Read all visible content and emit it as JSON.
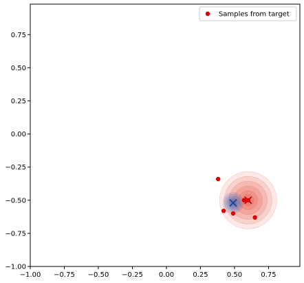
{
  "chart_data": {
    "type": "scatter",
    "title": "",
    "xlabel": "",
    "ylabel": "",
    "xlim": [
      -1.0,
      0.98
    ],
    "ylim": [
      -1.0,
      0.98
    ],
    "x_ticks": [
      -1.0,
      -0.75,
      -0.5,
      -0.25,
      0.0,
      0.25,
      0.5,
      0.75
    ],
    "y_ticks": [
      -1.0,
      -0.75,
      -0.5,
      -0.25,
      0.0,
      0.25,
      0.5,
      0.75
    ],
    "x_tick_labels": [
      "−1.00",
      "−0.75",
      "−0.50",
      "−0.25",
      "0.00",
      "0.25",
      "0.50",
      "0.75"
    ],
    "y_tick_labels": [
      "−1.00",
      "−0.75",
      "−0.50",
      "−0.25",
      "0.00",
      "0.25",
      "0.50",
      "0.75"
    ],
    "grid": false,
    "legend": {
      "placement": "top-right",
      "entries": [
        "Samples from target"
      ]
    },
    "series": [
      {
        "name": "Samples from target",
        "color": "#e00000",
        "points": [
          {
            "x": 0.38,
            "y": -0.34
          },
          {
            "x": 0.42,
            "y": -0.58
          },
          {
            "x": 0.49,
            "y": -0.6
          },
          {
            "x": 0.65,
            "y": -0.63
          },
          {
            "x": 0.57,
            "y": -0.5
          },
          {
            "x": 0.6,
            "y": -0.5
          }
        ]
      }
    ],
    "density_blobs": [
      {
        "center": {
          "x": 0.6,
          "y": -0.5
        },
        "color": "#e74c3c",
        "marker": "x",
        "spread": 0.07
      },
      {
        "center": {
          "x": 0.49,
          "y": -0.52
        },
        "color": "#2c5db8",
        "marker": "x",
        "spread": 0.025
      }
    ]
  }
}
